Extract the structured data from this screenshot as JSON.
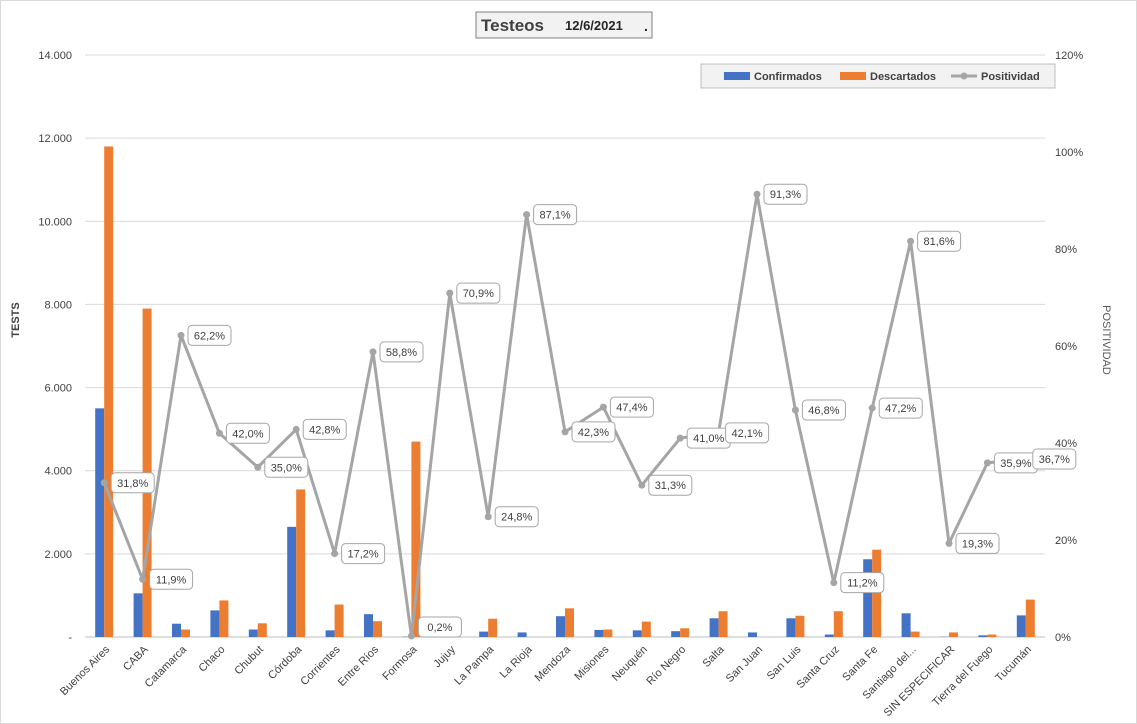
{
  "chart_data": {
    "type": "bar",
    "title": "Testeos",
    "date": "12/6/2021",
    "title_suffix": ".",
    "ylabel_left": "TESTS",
    "ylabel_right": "POSITIVIDAD",
    "ylim_left": [
      0,
      14000
    ],
    "ylim_right": [
      0,
      120
    ],
    "left_ticks": [
      {
        "value": 0,
        "label": "-"
      },
      {
        "value": 2000,
        "label": "2.000"
      },
      {
        "value": 4000,
        "label": "4.000"
      },
      {
        "value": 6000,
        "label": "6.000"
      },
      {
        "value": 8000,
        "label": "8.000"
      },
      {
        "value": 10000,
        "label": "10.000"
      },
      {
        "value": 12000,
        "label": "12.000"
      },
      {
        "value": 14000,
        "label": "14.000"
      }
    ],
    "right_ticks": [
      {
        "value": 0,
        "label": "0%"
      },
      {
        "value": 20,
        "label": "20%"
      },
      {
        "value": 40,
        "label": "40%"
      },
      {
        "value": 60,
        "label": "60%"
      },
      {
        "value": 80,
        "label": "80%"
      },
      {
        "value": 100,
        "label": "100%"
      },
      {
        "value": 120,
        "label": "120%"
      }
    ],
    "grid": true,
    "legend_position": "top-right",
    "categories": [
      "Buenos Aires",
      "CABA",
      "Catamarca",
      "Chaco",
      "Chubut",
      "Córdoba",
      "Corrientes",
      "Entre Ríos",
      "Formosa",
      "Jujuy",
      "La Pampa",
      "La Rioja",
      "Mendoza",
      "Misiones",
      "Neuquén",
      "Río Negro",
      "Salta",
      "San Juan",
      "San Luis",
      "Santa Cruz",
      "Santa Fe",
      "Santiago del...",
      "SIN ESPECIFICAR",
      "Tierra del Fuego",
      "Tucumán"
    ],
    "series": [
      {
        "name": "Confirmados",
        "type": "bar",
        "axis": "left",
        "color": "#4472C4",
        "values": [
          5500,
          1050,
          320,
          640,
          180,
          2650,
          160,
          550,
          10,
          20,
          130,
          110,
          500,
          170,
          160,
          140,
          450,
          110,
          450,
          60,
          1870,
          570,
          5,
          40,
          520
        ]
      },
      {
        "name": "Descartados",
        "type": "bar",
        "axis": "left",
        "color": "#ED7D31",
        "values": [
          11800,
          7900,
          180,
          880,
          330,
          3550,
          780,
          380,
          4700,
          90,
          440,
          0,
          690,
          180,
          370,
          210,
          620,
          0,
          510,
          620,
          2100,
          130,
          110,
          60,
          900
        ]
      },
      {
        "name": "Positividad",
        "type": "line",
        "axis": "right",
        "color": "#A5A5A5",
        "values": [
          31.8,
          11.9,
          62.2,
          42.0,
          35.0,
          42.8,
          17.2,
          58.8,
          0.2,
          70.9,
          24.8,
          87.1,
          42.3,
          47.4,
          31.3,
          41.0,
          42.1,
          91.3,
          46.8,
          11.2,
          47.2,
          81.6,
          19.3,
          35.9,
          36.7
        ],
        "labels": [
          "31,8%",
          "11,9%",
          "62,2%",
          "42,0%",
          "35,0%",
          "42,8%",
          "17,2%",
          "58,8%",
          "0,2%",
          "70,9%",
          "24,8%",
          "87,1%",
          "42,3%",
          "47,4%",
          "31,3%",
          "41,0%",
          "42,1%",
          "91,3%",
          "46,8%",
          "11,2%",
          "47,2%",
          "81,6%",
          "19,3%",
          "35,9%",
          "36,7%"
        ]
      }
    ]
  }
}
